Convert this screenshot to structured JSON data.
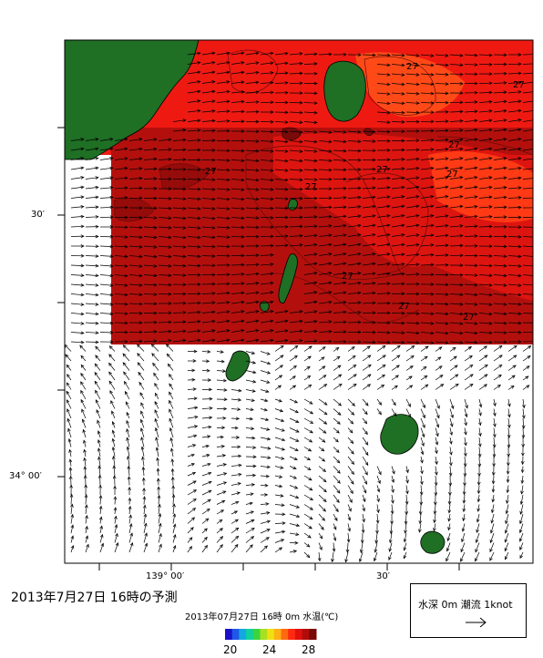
{
  "map": {
    "lat_labels": [
      "30′",
      "34° 00′"
    ],
    "lon_labels": [
      "139° 00′",
      "30′"
    ],
    "contour_labels": [
      "27",
      "27",
      "27",
      "27",
      "27",
      "27",
      "27",
      "27",
      "27",
      "27"
    ]
  },
  "forecast_title": "2013年7月27日  16時の予測",
  "colorbar": {
    "title": "2013年07月27日 16時 0m 水温(℃)",
    "labels": [
      "20",
      "24",
      "28"
    ],
    "min": 20,
    "max": 28
  },
  "legend": {
    "text": "水深 0m  潮流 1knot"
  },
  "colors": {
    "land": "#1f6f24",
    "sea_warm": "#ee1a12",
    "sea_hot": "#b3100d",
    "sea_orange": "#ff4a18"
  }
}
